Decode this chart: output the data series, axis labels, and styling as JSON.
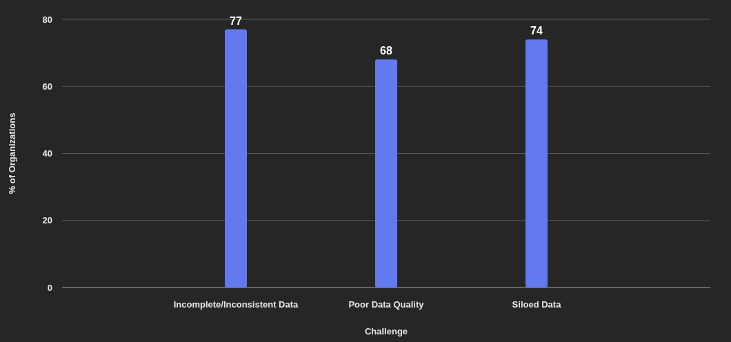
{
  "chart_data": {
    "type": "bar",
    "xlabel": "Challenge",
    "ylabel": "% of Organizations",
    "categories": [
      "Incomplete/Inconsistent Data",
      "Poor Data Quality",
      "Siloed Data"
    ],
    "values": [
      77,
      68,
      74
    ],
    "color": "#6379f0",
    "ylim": [
      0,
      80
    ],
    "yticks": [
      0,
      20,
      40,
      60,
      80
    ],
    "grid": "y",
    "data_labels": true
  }
}
